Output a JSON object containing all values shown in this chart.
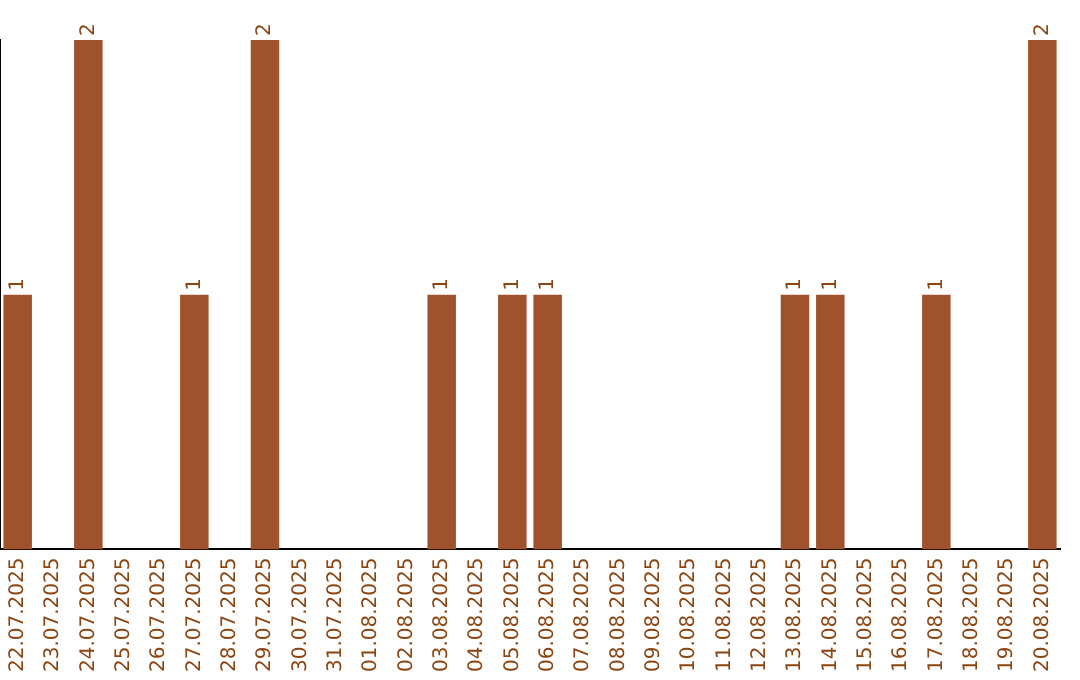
{
  "chart_data": {
    "type": "bar",
    "categories": [
      "22.07.2025",
      "23.07.2025",
      "24.07.2025",
      "25.07.2025",
      "26.07.2025",
      "27.07.2025",
      "28.07.2025",
      "29.07.2025",
      "30.07.2025",
      "31.07.2025",
      "01.08.2025",
      "02.08.2025",
      "03.08.2025",
      "04.08.2025",
      "05.08.2025",
      "06.08.2025",
      "07.08.2025",
      "08.08.2025",
      "09.08.2025",
      "10.08.2025",
      "11.08.2025",
      "12.08.2025",
      "13.08.2025",
      "14.08.2025",
      "15.08.2025",
      "16.08.2025",
      "17.08.2025",
      "18.08.2025",
      "19.08.2025",
      "20.08.2025"
    ],
    "values": [
      1,
      0,
      2,
      0,
      0,
      1,
      0,
      2,
      0,
      0,
      0,
      0,
      1,
      0,
      1,
      1,
      0,
      0,
      0,
      0,
      0,
      0,
      1,
      1,
      0,
      0,
      1,
      0,
      0,
      2
    ],
    "value_labels": [
      "1",
      null,
      "2",
      null,
      null,
      "1",
      null,
      "2",
      null,
      null,
      null,
      null,
      "1",
      null,
      "1",
      "1",
      null,
      null,
      null,
      null,
      null,
      null,
      "1",
      "1",
      null,
      null,
      "1",
      null,
      null,
      "2"
    ],
    "color": "#a0522d",
    "grid": false,
    "legend": false,
    "tick_labels": "x"
  }
}
